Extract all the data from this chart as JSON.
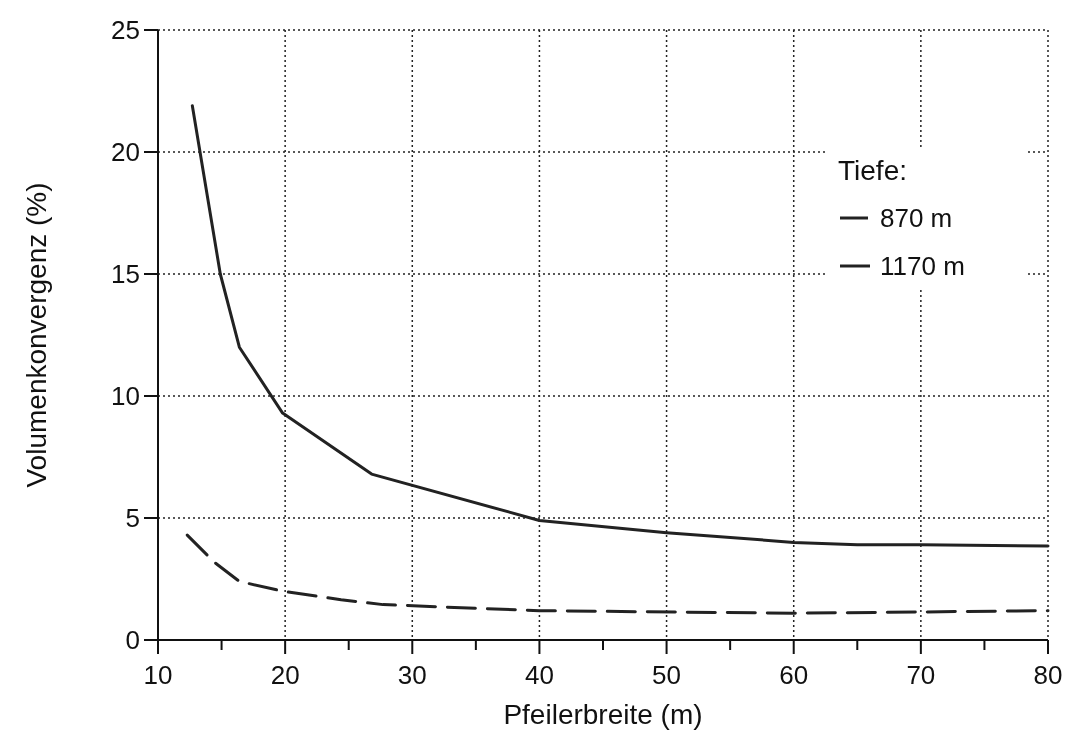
{
  "chart_data": {
    "type": "line",
    "xlabel": "Pfeilerbreite (m)",
    "ylabel": "Volumenkonvergenz (%)",
    "legend_title": "Tiefe:",
    "legend": "top right",
    "grid": true,
    "xlim": [
      10,
      80
    ],
    "xticks": [
      10,
      {
        "value": 15,
        "label": null
      },
      20,
      {
        "value": 25,
        "label": null
      },
      30,
      {
        "value": 35,
        "label": null
      },
      40,
      {
        "value": 45,
        "label": null
      },
      50,
      {
        "value": 55,
        "label": null
      },
      60,
      {
        "value": 65,
        "label": null
      },
      70,
      {
        "value": 75,
        "label": null
      },
      80
    ],
    "ylim": [
      0,
      25
    ],
    "yticks": [
      0,
      5,
      10,
      15,
      20,
      25
    ],
    "series": [
      {
        "name": "870 m",
        "color": "#222222",
        "line_style": "dashed",
        "x": [
          12.3,
          14.4,
          16.4,
          19.8,
          24.4,
          27.7,
          40,
          60,
          70,
          80
        ],
        "values": [
          4.3,
          3.2,
          2.4,
          2.0,
          1.65,
          1.45,
          1.2,
          1.1,
          1.15,
          1.2
        ]
      },
      {
        "name": "1170 m",
        "color": "#222222",
        "line_style": "solid",
        "x": [
          12.7,
          14.9,
          16.4,
          19.8,
          26.8,
          40,
          50,
          60,
          65,
          70,
          80
        ],
        "values": [
          21.9,
          15.0,
          12.0,
          9.3,
          6.8,
          4.9,
          4.4,
          4.0,
          3.9,
          3.9,
          3.85
        ]
      }
    ]
  }
}
